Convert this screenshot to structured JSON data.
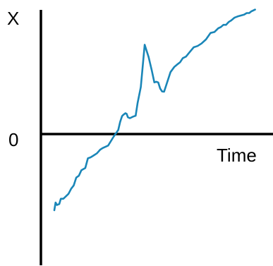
{
  "chart_data": {
    "type": "line",
    "title": "",
    "xlabel": "Time",
    "ylabel": "X",
    "y_zero_label": "0",
    "xlim": [
      0,
      100
    ],
    "ylim": [
      -45,
      40
    ],
    "grid": false,
    "legend": "none",
    "series": [
      {
        "color": "#1a86b8",
        "x": [
          0.0,
          0.6,
          1.2,
          2.3,
          3.0,
          4.2,
          5.4,
          6.6,
          7.8,
          9.0,
          10.2,
          11.4,
          12.6,
          14.4,
          15.6,
          16.8,
          18.0,
          19.8,
          21.3,
          22.5,
          25.0,
          27.6,
          29.7,
          30.6,
          31.5,
          32.1,
          33.0,
          33.6,
          34.2,
          35.1,
          36.6,
          37.8,
          38.7,
          40.2,
          42.0,
          43.8,
          45.3,
          46.5,
          47.4,
          48.3,
          49.2,
          50.1,
          51.0,
          52.2,
          54.0,
          55.8,
          57.0,
          58.5,
          59.7,
          61.2,
          63.0,
          64.8,
          66.6,
          68.4,
          70.5,
          72.6,
          74.4,
          76.2,
          77.4,
          78.6,
          79.8,
          81.0,
          82.2,
          83.7,
          85.2,
          86.7,
          88.2,
          89.4,
          90.6,
          91.5,
          92.4,
          93.3
        ],
        "y": [
          -24.5,
          -22.0,
          -22.8,
          -22.5,
          -20.8,
          -20.8,
          -20.0,
          -19.2,
          -17.6,
          -16.5,
          -14.0,
          -13.4,
          -11.6,
          -10.9,
          -7.8,
          -7.5,
          -7.0,
          -6.2,
          -5.0,
          -4.5,
          -3.7,
          -0.8,
          1.3,
          3.9,
          5.8,
          6.2,
          6.7,
          6.5,
          5.4,
          5.1,
          5.6,
          5.9,
          9.9,
          15.1,
          28.7,
          24.8,
          20.4,
          16.6,
          16.8,
          16.6,
          14.6,
          13.7,
          13.6,
          16.1,
          19.9,
          21.6,
          22.3,
          23.1,
          24.4,
          24.9,
          26.4,
          27.9,
          28.3,
          29.1,
          30.4,
          32.5,
          32.8,
          34.0,
          34.4,
          35.1,
          35.1,
          36.0,
          36.5,
          37.4,
          37.8,
          38.1,
          38.4,
          38.9,
          38.9,
          39.4,
          39.7,
          40.0
        ]
      }
    ]
  }
}
